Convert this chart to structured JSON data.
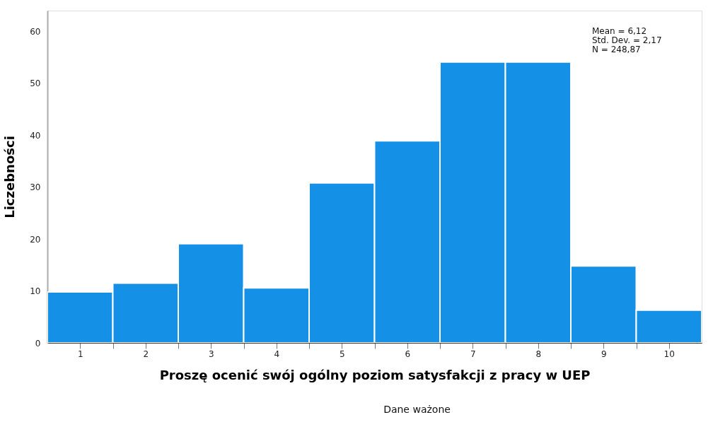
{
  "chart_data": {
    "type": "histogram",
    "xlabel": "Proszę ocenić swój ogólny poziom satysfakcji z pracy w UEP",
    "ylabel": "Liczebności",
    "bins": [
      0.5,
      1.5,
      2.5,
      3.5,
      4.5,
      5.5,
      6.5,
      7.5,
      8.5,
      9.5,
      10.5
    ],
    "values": [
      9.8,
      11.5,
      19.1,
      10.6,
      30.8,
      38.9,
      54.1,
      54.1,
      14.8,
      6.3
    ],
    "color": "#1490e6",
    "xlim": [
      0.5,
      10.5
    ],
    "xticks": [
      1,
      2,
      3,
      4,
      5,
      6,
      7,
      8,
      9,
      10,
      {
        "value": 1.5,
        "label": null
      },
      {
        "value": 2.5,
        "label": null
      },
      {
        "value": 3.5,
        "label": null
      },
      {
        "value": 4.5,
        "label": null
      },
      {
        "value": 5.5,
        "label": null
      },
      {
        "value": 6.5,
        "label": null
      },
      {
        "value": 7.5,
        "label": null
      },
      {
        "value": 8.5,
        "label": null
      },
      {
        "value": 9.5,
        "label": null
      }
    ],
    "ylim": [
      0,
      64
    ],
    "yticks": [
      0,
      10,
      20,
      30,
      40,
      50,
      60
    ],
    "grid": false,
    "annotations": [
      "Mean = 6,12",
      "Std. Dev. = 2,17",
      "N = 248,87",
      "Dane ważone"
    ]
  }
}
